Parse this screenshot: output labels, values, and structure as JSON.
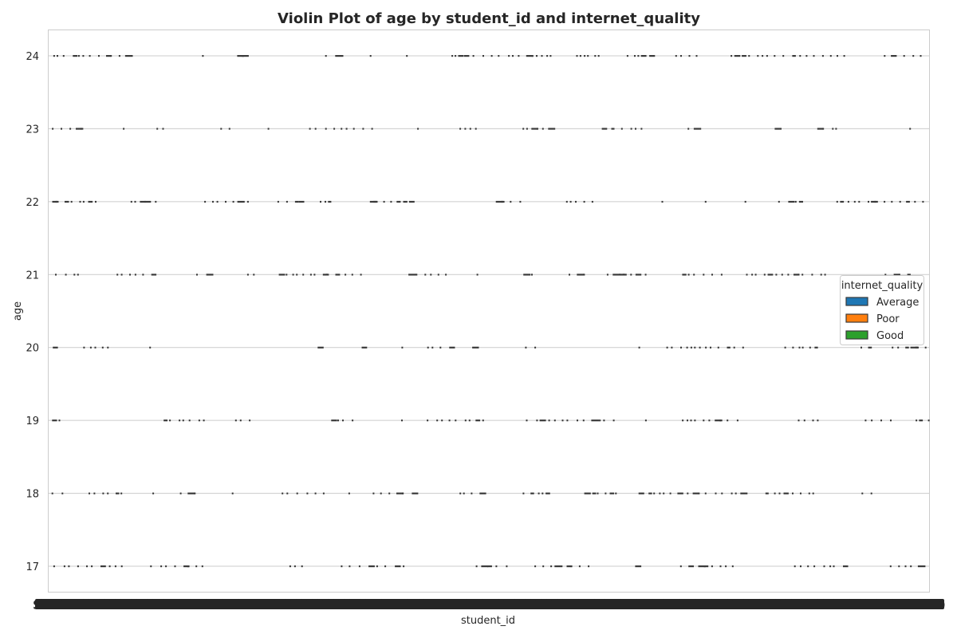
{
  "chart_data": {
    "type": "violin",
    "title": "Violin Plot of age by student_id and internet_quality",
    "xlabel": "student_id",
    "ylabel": "age",
    "ylim": [
      16.65,
      24.35
    ],
    "yticks": [
      17,
      18,
      19,
      20,
      21,
      22,
      23,
      24
    ],
    "grid": true,
    "legend": {
      "title": "internet_quality",
      "placement": "center-right",
      "entries": [
        {
          "name": "Average",
          "color": "#1f77b4"
        },
        {
          "name": "Poor",
          "color": "#ff7f0e"
        },
        {
          "name": "Good",
          "color": "#2ca02c"
        }
      ]
    },
    "x_tick_note": "Several hundred overlapping student_id category labels",
    "x_tick_label_fragments": [
      "S",
      "9"
    ],
    "series_marker_color": "#3a3a3a"
  }
}
